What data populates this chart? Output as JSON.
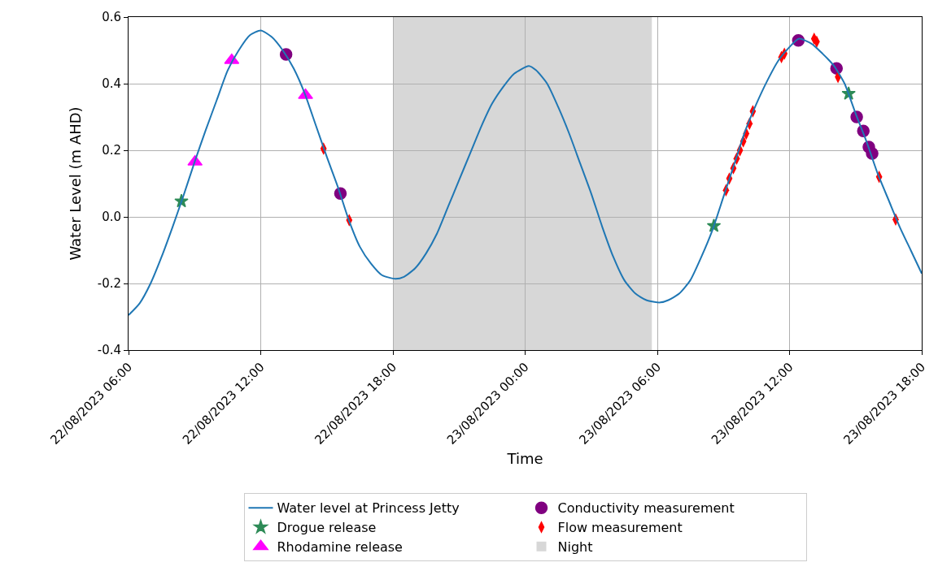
{
  "chart_data": {
    "type": "line",
    "xlabel": "Time",
    "ylabel": "Water Level (m AHD)",
    "series": [
      {
        "name": "Water level at Princess Jetty",
        "color": "#1f77b4",
        "marker": "none",
        "line_style": "solid",
        "x": [
          "2023-08-22T06:00",
          "2023-08-22T06:30",
          "2023-08-22T07:00",
          "2023-08-22T07:30",
          "2023-08-22T08:00",
          "2023-08-22T08:30",
          "2023-08-22T09:00",
          "2023-08-22T09:30",
          "2023-08-22T10:00",
          "2023-08-22T10:30",
          "2023-08-22T11:00",
          "2023-08-22T11:30",
          "2023-08-22T12:00",
          "2023-08-22T12:30",
          "2023-08-22T13:00",
          "2023-08-22T13:30",
          "2023-08-22T14:00",
          "2023-08-22T14:30",
          "2023-08-22T15:00",
          "2023-08-22T15:30",
          "2023-08-22T16:00",
          "2023-08-22T16:30",
          "2023-08-22T17:00",
          "2023-08-22T17:30",
          "2023-08-22T18:07",
          "2023-08-22T18:30",
          "2023-08-22T19:00",
          "2023-08-22T19:30",
          "2023-08-22T20:00",
          "2023-08-22T20:30",
          "2023-08-22T21:00",
          "2023-08-22T21:30",
          "2023-08-22T22:00",
          "2023-08-22T22:30",
          "2023-08-22T23:00",
          "2023-08-22T23:30",
          "2023-08-23T00:10",
          "2023-08-23T00:30",
          "2023-08-23T01:00",
          "2023-08-23T01:30",
          "2023-08-23T02:00",
          "2023-08-23T02:30",
          "2023-08-23T03:00",
          "2023-08-23T03:30",
          "2023-08-23T04:00",
          "2023-08-23T04:30",
          "2023-08-23T05:00",
          "2023-08-23T05:30",
          "2023-08-23T06:08",
          "2023-08-23T06:30",
          "2023-08-23T07:00",
          "2023-08-23T07:30",
          "2023-08-23T08:00",
          "2023-08-23T08:30",
          "2023-08-23T09:00",
          "2023-08-23T09:30",
          "2023-08-23T10:00",
          "2023-08-23T10:30",
          "2023-08-23T11:00",
          "2023-08-23T11:30",
          "2023-08-23T12:00",
          "2023-08-23T12:25",
          "2023-08-23T13:00",
          "2023-08-23T13:30",
          "2023-08-23T14:00",
          "2023-08-23T14:30",
          "2023-08-23T15:00",
          "2023-08-23T15:30",
          "2023-08-23T16:00",
          "2023-08-23T16:30",
          "2023-08-23T17:00",
          "2023-08-23T17:30",
          "2023-08-23T18:00"
        ],
        "values": [
          -0.295,
          -0.26,
          -0.2,
          -0.12,
          -0.03,
          0.065,
          0.165,
          0.26,
          0.35,
          0.44,
          0.5,
          0.545,
          0.56,
          0.54,
          0.5,
          0.445,
          0.37,
          0.275,
          0.18,
          0.09,
          -0.01,
          -0.09,
          -0.14,
          -0.175,
          -0.186,
          -0.18,
          -0.155,
          -0.11,
          -0.05,
          0.03,
          0.11,
          0.19,
          0.27,
          0.34,
          0.39,
          0.43,
          0.453,
          0.44,
          0.4,
          0.33,
          0.25,
          0.16,
          0.07,
          -0.03,
          -0.12,
          -0.19,
          -0.23,
          -0.25,
          -0.257,
          -0.25,
          -0.23,
          -0.19,
          -0.12,
          -0.04,
          0.06,
          0.16,
          0.26,
          0.34,
          0.41,
          0.47,
          0.51,
          0.535,
          0.52,
          0.49,
          0.455,
          0.4,
          0.31,
          0.225,
          0.13,
          0.05,
          -0.03,
          -0.1,
          -0.17
        ]
      },
      {
        "name": "Conductivity measurement",
        "type": "scatter",
        "color": "#800080",
        "marker": "circle",
        "x": [
          "2023-08-22T13:09",
          "2023-08-22T15:37",
          "2023-08-23T12:24",
          "2023-08-23T14:08",
          "2023-08-23T15:03",
          "2023-08-23T15:21",
          "2023-08-23T15:36",
          "2023-08-23T15:45"
        ],
        "values": [
          0.488,
          0.07,
          0.53,
          0.446,
          0.3,
          0.258,
          0.21,
          0.19
        ]
      },
      {
        "name": "Drogue release",
        "type": "scatter",
        "color": "#2e8b57",
        "marker": "star",
        "x": [
          "2023-08-22T08:24",
          "2023-08-23T08:34",
          "2023-08-23T14:41"
        ],
        "values": [
          0.047,
          -0.027,
          0.37
        ]
      },
      {
        "name": "Flow measurement",
        "type": "scatter",
        "color": "#ff0000",
        "marker": "diamond",
        "x": [
          "2023-08-22T14:51",
          "2023-08-22T16:01",
          "2023-08-23T09:07",
          "2023-08-23T09:16",
          "2023-08-23T09:27",
          "2023-08-23T09:36",
          "2023-08-23T09:45",
          "2023-08-23T09:54",
          "2023-08-23T10:02",
          "2023-08-23T10:11",
          "2023-08-23T10:20",
          "2023-08-23T11:38",
          "2023-08-23T11:46",
          "2023-08-23T13:07",
          "2023-08-23T13:14",
          "2023-08-23T14:12",
          "2023-08-23T16:04",
          "2023-08-23T16:49"
        ],
        "values": [
          0.205,
          -0.01,
          0.08,
          0.115,
          0.146,
          0.175,
          0.2,
          0.227,
          0.25,
          0.28,
          0.317,
          0.48,
          0.49,
          0.535,
          0.526,
          0.42,
          0.12,
          -0.008
        ]
      },
      {
        "name": "Rhodamine release",
        "type": "scatter",
        "color": "#ff00ff",
        "marker": "triangle",
        "x": [
          "2023-08-22T09:01",
          "2023-08-22T10:41",
          "2023-08-22T14:02"
        ],
        "values": [
          0.165,
          0.47,
          0.365
        ]
      }
    ],
    "bands": [
      {
        "axis": "x",
        "from": "2023-08-22T18:00",
        "to": "2023-08-23T05:45",
        "label": "Night",
        "color": "#d3d3d3"
      }
    ],
    "xlim": [
      "2023-08-22T06:00",
      "2023-08-23T18:00"
    ],
    "xticks": [
      {
        "value": "2023-08-22T06:00",
        "label": "22/08/2023 06:00"
      },
      {
        "value": "2023-08-22T12:00",
        "label": "22/08/2023 12:00"
      },
      {
        "value": "2023-08-22T18:00",
        "label": "22/08/2023 18:00"
      },
      {
        "value": "2023-08-23T00:00",
        "label": "23/08/2023 00:00"
      },
      {
        "value": "2023-08-23T06:00",
        "label": "23/08/2023 06:00"
      },
      {
        "value": "2023-08-23T12:00",
        "label": "23/08/2023 12:00"
      },
      {
        "value": "2023-08-23T18:00",
        "label": "23/08/2023 18:00"
      }
    ],
    "ylim": [
      -0.4,
      0.6
    ],
    "yticks": [
      {
        "value": -0.4,
        "label": "-0.4"
      },
      {
        "value": -0.2,
        "label": "-0.2"
      },
      {
        "value": 0,
        "label": "0.0"
      },
      {
        "value": 0.2,
        "label": "0.2"
      },
      {
        "value": 0.4,
        "label": "0.4"
      },
      {
        "value": 0.6,
        "label": "0.6"
      }
    ],
    "grid": true,
    "legend": "bottom"
  }
}
